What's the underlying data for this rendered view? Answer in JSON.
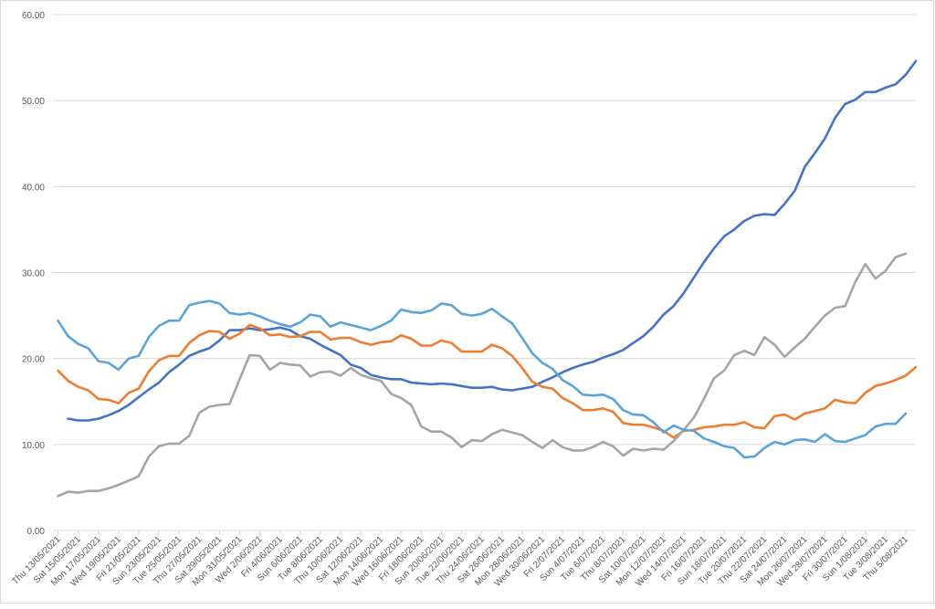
{
  "chart_data": {
    "type": "line",
    "title": "",
    "xlabel": "",
    "ylabel": "",
    "ylim": [
      0,
      60
    ],
    "y_ticks": [
      "0.00",
      "10.00",
      "20.00",
      "30.00",
      "40.00",
      "50.00",
      "60.00"
    ],
    "grid": true,
    "legend": "none",
    "x_tick_labels": [
      "Thu 13/05/2021",
      "Sat 15/05/2021",
      "Mon 17/05/2021",
      "Wed 19/05/2021",
      "Fri 21/05/2021",
      "Sun 23/05/2021",
      "Tue 25/05/2021",
      "Thu 27/05/2021",
      "Sat 29/05/2021",
      "Mon 31/05/2021",
      "Wed 2/06/2021",
      "Fri 4/06/2021",
      "Sun 6/06/2021",
      "Tue 8/06/2021",
      "Thu 10/06/2021",
      "Sat 12/06/2021",
      "Mon 14/06/2021",
      "Wed 16/06/2021",
      "Fri 18/06/2021",
      "Sun 20/06/2021",
      "Tue 22/06/2021",
      "Thu 24/06/2021",
      "Sat 26/06/2021",
      "Mon 28/06/2021",
      "Wed 30/06/2021",
      "Fri 2/07/2021",
      "Sun 4/07/2021",
      "Tue 6/07/2021",
      "Thu 8/07/2021",
      "Sat 10/07/2021",
      "Mon 12/07/2021",
      "Wed 14/07/2021",
      "Fri 16/07/2021",
      "Sun 18/07/2021",
      "Tue 20/07/2021",
      "Thu 22/07/2021",
      "Sat 24/07/2021",
      "Mon 26/07/2021",
      "Wed 28/07/2021",
      "Fri 30/07/2021",
      "Sun 1/08/2021",
      "Tue 3/08/2021",
      "Thu 5/08/2021"
    ],
    "series": [
      {
        "color": "#4472C4",
        "values": [
          null,
          13.0,
          12.8,
          12.8,
          13.0,
          13.4,
          13.9,
          14.6,
          15.5,
          16.4,
          17.2,
          18.4,
          19.3,
          20.3,
          20.8,
          21.2,
          22.1,
          23.3,
          23.3,
          23.5,
          23.3,
          23.4,
          23.6,
          23.3,
          22.6,
          22.3,
          21.6,
          21.0,
          20.4,
          19.3,
          18.9,
          18.1,
          17.8,
          17.6,
          17.6,
          17.2,
          17.1,
          17.0,
          17.1,
          17.0,
          16.8,
          16.6,
          16.6,
          16.7,
          16.4,
          16.3,
          16.5,
          16.7,
          17.3,
          17.8,
          18.4,
          18.9,
          19.3,
          19.6,
          20.1,
          20.5,
          21.0,
          21.8,
          22.6,
          23.7,
          25.1,
          26.1,
          27.6,
          29.4,
          31.2,
          32.8,
          34.2,
          35.0,
          36.0,
          36.6,
          36.8,
          36.7,
          38.0,
          39.5,
          42.3,
          43.9,
          45.6,
          48.0,
          49.6,
          50.1,
          51.0,
          51.0,
          51.5,
          51.9,
          53.0,
          54.6
        ]
      },
      {
        "color": "#ED7D31",
        "values": [
          18.6,
          17.4,
          16.7,
          16.3,
          15.3,
          15.2,
          14.8,
          16.0,
          16.5,
          18.5,
          19.8,
          20.3,
          20.3,
          21.8,
          22.7,
          23.2,
          23.1,
          22.3,
          22.9,
          23.9,
          23.5,
          22.7,
          22.8,
          22.5,
          22.6,
          23.1,
          23.1,
          22.2,
          22.4,
          22.4,
          21.9,
          21.6,
          21.9,
          22.0,
          22.7,
          22.3,
          21.5,
          21.5,
          22.1,
          21.8,
          20.8,
          20.8,
          20.8,
          21.6,
          21.2,
          20.3,
          18.9,
          17.3,
          16.7,
          16.5,
          15.4,
          14.8,
          14.0,
          14.0,
          14.2,
          13.8,
          12.5,
          12.3,
          12.3,
          12.0,
          11.6,
          10.8,
          11.6,
          11.7,
          12.0,
          12.1,
          12.3,
          12.3,
          12.6,
          12.0,
          11.9,
          13.3,
          13.5,
          12.9,
          13.6,
          13.9,
          14.2,
          15.2,
          14.9,
          14.8,
          16.0,
          16.8,
          17.1,
          17.5,
          18.0,
          19.0
        ]
      },
      {
        "color": "#A5A5A5",
        "values": [
          4.0,
          4.5,
          4.4,
          4.6,
          4.6,
          4.9,
          5.3,
          5.8,
          6.3,
          8.6,
          9.8,
          10.1,
          10.1,
          11.0,
          13.7,
          14.4,
          14.6,
          14.7,
          17.6,
          20.4,
          20.3,
          18.7,
          19.5,
          19.3,
          19.2,
          17.9,
          18.4,
          18.5,
          18.0,
          18.9,
          18.1,
          17.7,
          17.4,
          15.9,
          15.4,
          14.6,
          12.1,
          11.5,
          11.5,
          10.8,
          9.7,
          10.5,
          10.4,
          11.2,
          11.7,
          11.4,
          11.1,
          10.3,
          9.6,
          10.5,
          9.7,
          9.3,
          9.3,
          9.7,
          10.3,
          9.8,
          8.7,
          9.5,
          9.3,
          9.5,
          9.4,
          10.4,
          11.7,
          13.1,
          15.3,
          17.7,
          18.6,
          20.4,
          20.9,
          20.4,
          22.5,
          21.6,
          20.2,
          21.3,
          22.3,
          23.7,
          25.0,
          25.9,
          26.1,
          28.9,
          31.0,
          29.3,
          30.2,
          31.8,
          32.2
        ]
      },
      {
        "color": "#5BA3D9",
        "values": [
          24.4,
          22.6,
          21.7,
          21.2,
          19.7,
          19.5,
          18.7,
          20.0,
          20.3,
          22.5,
          23.8,
          24.4,
          24.4,
          26.2,
          26.5,
          26.7,
          26.4,
          25.3,
          25.1,
          25.3,
          24.9,
          24.4,
          24.0,
          23.7,
          24.2,
          25.1,
          24.9,
          23.7,
          24.2,
          23.9,
          23.6,
          23.3,
          23.8,
          24.4,
          25.7,
          25.4,
          25.3,
          25.6,
          26.4,
          26.2,
          25.2,
          25.0,
          25.2,
          25.8,
          24.9,
          24.1,
          22.4,
          20.6,
          19.5,
          18.8,
          17.5,
          16.8,
          15.8,
          15.7,
          15.8,
          15.3,
          14.0,
          13.5,
          13.4,
          12.6,
          11.4,
          12.2,
          11.7,
          11.6,
          10.7,
          10.3,
          9.8,
          9.6,
          8.5,
          8.6,
          9.6,
          10.3,
          10.0,
          10.5,
          10.6,
          10.3,
          11.2,
          10.4,
          10.3,
          10.7,
          11.1,
          12.1,
          12.4,
          12.4,
          13.6
        ]
      }
    ]
  }
}
